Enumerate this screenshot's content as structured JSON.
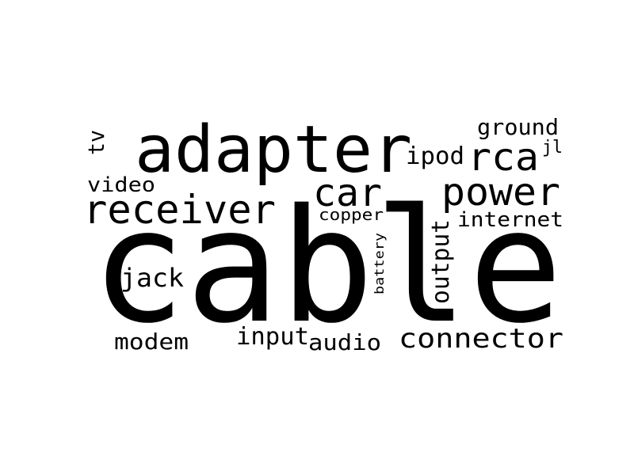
{
  "text_color": "#000000",
  "background_color": "#ffffff",
  "words": [
    "cable",
    "adapter",
    "receiver",
    "car",
    "power",
    "rca",
    "ipod",
    "ground",
    "jl",
    "tv",
    "video",
    "copper",
    "internet",
    "output",
    "battery",
    "jack",
    "modem",
    "input",
    "audio",
    "connector"
  ]
}
